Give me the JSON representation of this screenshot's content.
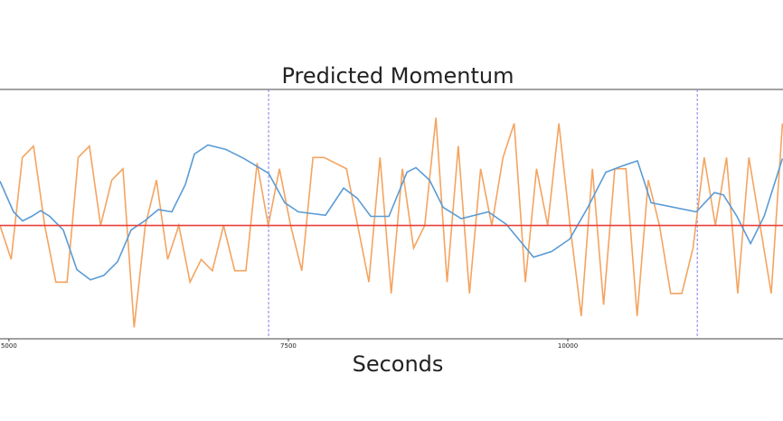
{
  "chart_data": {
    "type": "line",
    "title": "Predicted Momentum",
    "x_label": "Seconds",
    "xlim": [
      4920,
      11925
    ],
    "ylim": [
      -1,
      1.2
    ],
    "xticks": [
      5000,
      7500,
      10000
    ],
    "hline": {
      "value": 0,
      "color": "#e8403a"
    },
    "vlines": {
      "values": [
        7323,
        11158
      ],
      "color": "#8080f0"
    },
    "series": [
      {
        "color": "#5b9bd5",
        "x": [
          4920,
          5041,
          5122,
          5203,
          5284,
          5365,
          5486,
          5608,
          5729,
          5850,
          5972,
          6093,
          6214,
          6336,
          6457,
          6578,
          6659,
          6781,
          6943,
          7104,
          7323,
          7468,
          7590,
          7832,
          7994,
          8116,
          8237,
          8399,
          8561,
          8641,
          8763,
          8884,
          9046,
          9289,
          9450,
          9693,
          9855,
          10017,
          10179,
          10340,
          10502,
          10623,
          10745,
          11149,
          11311,
          11392,
          11513,
          11635,
          11756,
          11920
        ],
        "values": [
          0.39,
          0.12,
          0.04,
          0.08,
          0.13,
          0.08,
          -0.04,
          -0.39,
          -0.48,
          -0.44,
          -0.32,
          -0.04,
          0.04,
          0.14,
          0.12,
          0.36,
          0.63,
          0.71,
          0.67,
          0.59,
          0.46,
          0.2,
          0.12,
          0.09,
          0.33,
          0.24,
          0.08,
          0.08,
          0.47,
          0.51,
          0.4,
          0.16,
          0.06,
          0.12,
          0.01,
          -0.28,
          -0.23,
          -0.12,
          0.16,
          0.47,
          0.53,
          0.57,
          0.2,
          0.12,
          0.29,
          0.27,
          0.08,
          -0.16,
          0.08,
          0.59
        ]
      },
      {
        "color": "#f4a460",
        "x": [
          4920,
          5020,
          5120,
          5220,
          5320,
          5420,
          5520,
          5620,
          5720,
          5820,
          5920,
          6020,
          6120,
          6220,
          6320,
          6420,
          6520,
          6620,
          6720,
          6820,
          6920,
          7020,
          7120,
          7220,
          7320,
          7420,
          7520,
          7620,
          7720,
          7820,
          7920,
          8020,
          8120,
          8220,
          8320,
          8420,
          8520,
          8620,
          8720,
          8820,
          8920,
          9020,
          9120,
          9220,
          9320,
          9420,
          9520,
          9620,
          9720,
          9820,
          9920,
          10020,
          10120,
          10220,
          10320,
          10420,
          10520,
          10620,
          10720,
          10820,
          10920,
          11020,
          11120,
          11220,
          11320,
          11420,
          11520,
          11620,
          11720,
          11820,
          11920
        ],
        "values": [
          0.0,
          -0.3,
          0.6,
          0.7,
          0.0,
          -0.5,
          -0.5,
          0.6,
          0.7,
          0.0,
          0.4,
          0.5,
          -0.9,
          0.0,
          0.4,
          -0.3,
          0.0,
          -0.5,
          -0.3,
          -0.4,
          0.0,
          -0.4,
          -0.4,
          0.55,
          0.0,
          0.5,
          0.0,
          -0.4,
          0.6,
          0.6,
          0.55,
          0.5,
          0.0,
          -0.5,
          0.6,
          -0.6,
          0.5,
          -0.2,
          0.0,
          0.95,
          -0.5,
          0.7,
          -0.6,
          0.5,
          0.0,
          0.6,
          0.9,
          -0.5,
          0.5,
          0.0,
          0.9,
          0.0,
          -0.8,
          0.5,
          -0.7,
          0.5,
          0.5,
          -0.8,
          0.4,
          0.0,
          -0.6,
          -0.6,
          -0.2,
          0.6,
          0.0,
          0.6,
          -0.6,
          0.6,
          0.0,
          -0.6,
          0.9
        ]
      }
    ]
  }
}
